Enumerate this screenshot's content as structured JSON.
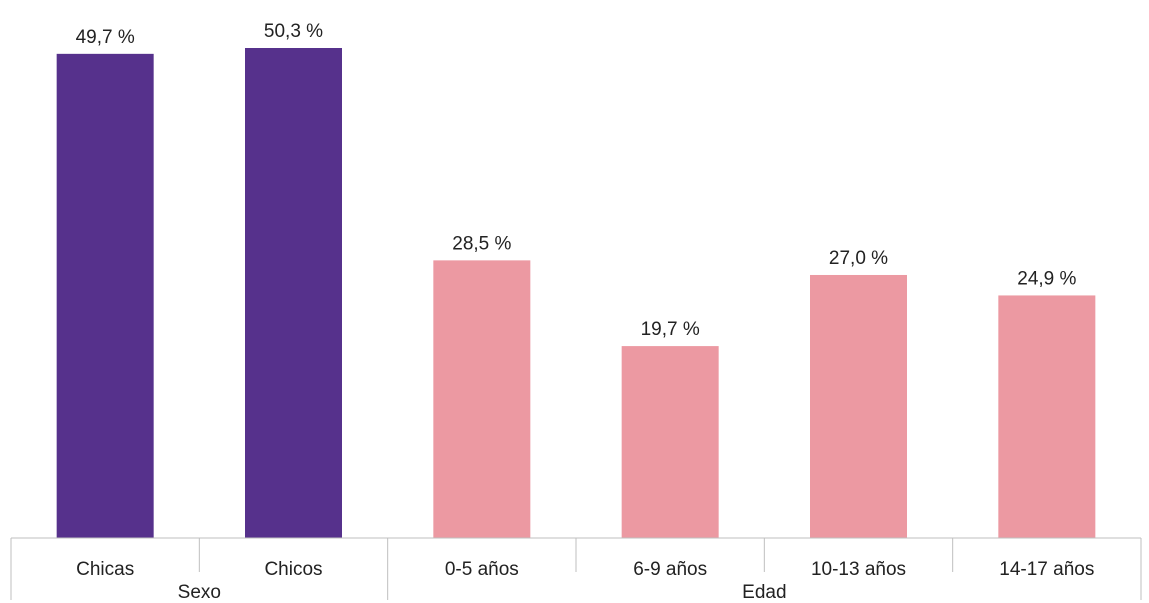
{
  "chart_data": {
    "type": "bar",
    "categories": [
      "Chicas",
      "Chicos",
      "0-5 años",
      "6-9 años",
      "10-13 años",
      "14-17 años"
    ],
    "values": [
      49.7,
      50.3,
      28.5,
      19.7,
      27.0,
      24.9
    ],
    "value_labels": [
      "49,7 %",
      "50,3 %",
      "28,5 %",
      "19,7 %",
      "27,0 %",
      "24,9 %"
    ],
    "groups": [
      {
        "label": "Sexo",
        "categories": [
          "Chicas",
          "Chicos"
        ],
        "color": "#56318c"
      },
      {
        "label": "Edad",
        "categories": [
          "0-5 años",
          "6-9 años",
          "10-13 años",
          "14-17 años"
        ],
        "color": "#ec99a2"
      }
    ],
    "title": "",
    "xlabel": "",
    "ylabel": "",
    "ylim": [
      0,
      50.3
    ],
    "grid": false,
    "legend": "none"
  }
}
